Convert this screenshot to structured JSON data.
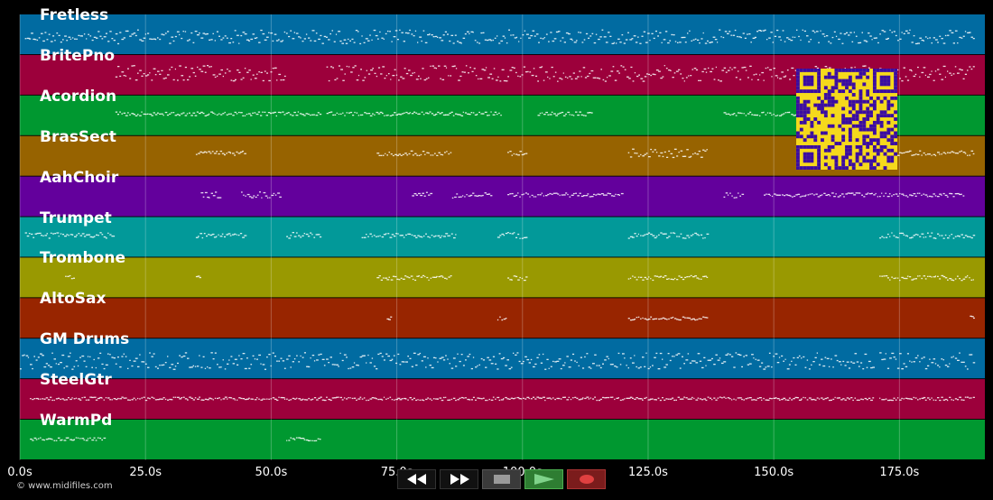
{
  "tracks": [
    {
      "name": "Fretless",
      "color": "#016ba1",
      "segments": [
        [
          1,
          19,
          0.55,
          0.28
        ],
        [
          19,
          190,
          0.55,
          0.35
        ]
      ]
    },
    {
      "name": "BritePno",
      "color": "#9c003b",
      "segments": [
        [
          19,
          53,
          0.45,
          0.4
        ],
        [
          61,
          99,
          0.45,
          0.4
        ],
        [
          99,
          170,
          0.45,
          0.4
        ],
        [
          171,
          190,
          0.45,
          0.4
        ]
      ]
    },
    {
      "name": "Acordion",
      "color": "#009830",
      "segments": [
        [
          19,
          60,
          0.45,
          0.1
        ],
        [
          61,
          96,
          0.45,
          0.1
        ],
        [
          103,
          114,
          0.45,
          0.1
        ],
        [
          140,
          170,
          0.45,
          0.1
        ]
      ]
    },
    {
      "name": "BrasSect",
      "color": "#976300",
      "segments": [
        [
          35,
          45,
          0.42,
          0.12
        ],
        [
          71,
          86,
          0.42,
          0.12
        ],
        [
          97,
          101,
          0.42,
          0.12
        ],
        [
          121,
          137,
          0.42,
          0.22
        ],
        [
          171,
          190,
          0.42,
          0.12
        ]
      ]
    },
    {
      "name": "AahChoir",
      "color": "#63009c",
      "segments": [
        [
          36,
          40,
          0.45,
          0.15
        ],
        [
          44,
          52,
          0.45,
          0.15
        ],
        [
          78,
          82,
          0.45,
          0.15
        ],
        [
          86,
          94,
          0.45,
          0.15
        ],
        [
          97,
          120,
          0.45,
          0.1
        ],
        [
          140,
          144,
          0.45,
          0.15
        ],
        [
          148,
          188,
          0.45,
          0.1
        ]
      ]
    },
    {
      "name": "Trumpet",
      "color": "#029999",
      "segments": [
        [
          1,
          19,
          0.45,
          0.15
        ],
        [
          35,
          45,
          0.45,
          0.12
        ],
        [
          53,
          60,
          0.45,
          0.15
        ],
        [
          68,
          87,
          0.45,
          0.12
        ],
        [
          95,
          101,
          0.45,
          0.15
        ],
        [
          121,
          137,
          0.45,
          0.15
        ],
        [
          171,
          190,
          0.45,
          0.15
        ]
      ]
    },
    {
      "name": "Trombone",
      "color": "#999901",
      "segments": [
        [
          9,
          11,
          0.5,
          0.12
        ],
        [
          35,
          36,
          0.5,
          0.12
        ],
        [
          71,
          86,
          0.5,
          0.12
        ],
        [
          97,
          101,
          0.5,
          0.12
        ],
        [
          121,
          137,
          0.5,
          0.12
        ],
        [
          171,
          190,
          0.5,
          0.12
        ]
      ]
    },
    {
      "name": "AltoSax",
      "color": "#982500",
      "segments": [
        [
          73,
          74,
          0.5,
          0.08
        ],
        [
          95,
          97,
          0.5,
          0.08
        ],
        [
          121,
          137,
          0.5,
          0.08
        ],
        [
          189,
          190,
          0.5,
          0.12
        ]
      ]
    },
    {
      "name": "GM Drums",
      "color": "#016ba1",
      "segments": [
        [
          0,
          19,
          0.55,
          0.42
        ],
        [
          19,
          170,
          0.55,
          0.42
        ],
        [
          171,
          190,
          0.55,
          0.42
        ]
      ]
    },
    {
      "name": "SteelGtr",
      "color": "#9c003b",
      "segments": [
        [
          2,
          19,
          0.48,
          0.08
        ],
        [
          19,
          170,
          0.48,
          0.08
        ],
        [
          171,
          190,
          0.48,
          0.08
        ]
      ]
    },
    {
      "name": "WarmPd",
      "color": "#009830",
      "segments": [
        [
          2,
          17,
          0.48,
          0.08
        ],
        [
          53,
          60,
          0.48,
          0.08
        ]
      ]
    }
  ],
  "timeline": {
    "max_seconds": 192,
    "ticks": [
      "0.0s",
      "25.0s",
      "50.0s",
      "75.0s",
      "100.0s",
      "125.0s",
      "150.0s",
      "175.0s"
    ],
    "tick_values": [
      0,
      25,
      50,
      75,
      100,
      125,
      150,
      175
    ]
  },
  "copyright": "© www.midifiles.com",
  "transport": {
    "rewind_icon": "rewind-icon",
    "fast_forward_icon": "fast-forward-icon",
    "stop_icon": "stop-icon",
    "play_icon": "play-icon",
    "record_icon": "record-icon"
  },
  "qr_colors": {
    "fg": "#3a0ca3",
    "bg": "#f5d91c"
  }
}
